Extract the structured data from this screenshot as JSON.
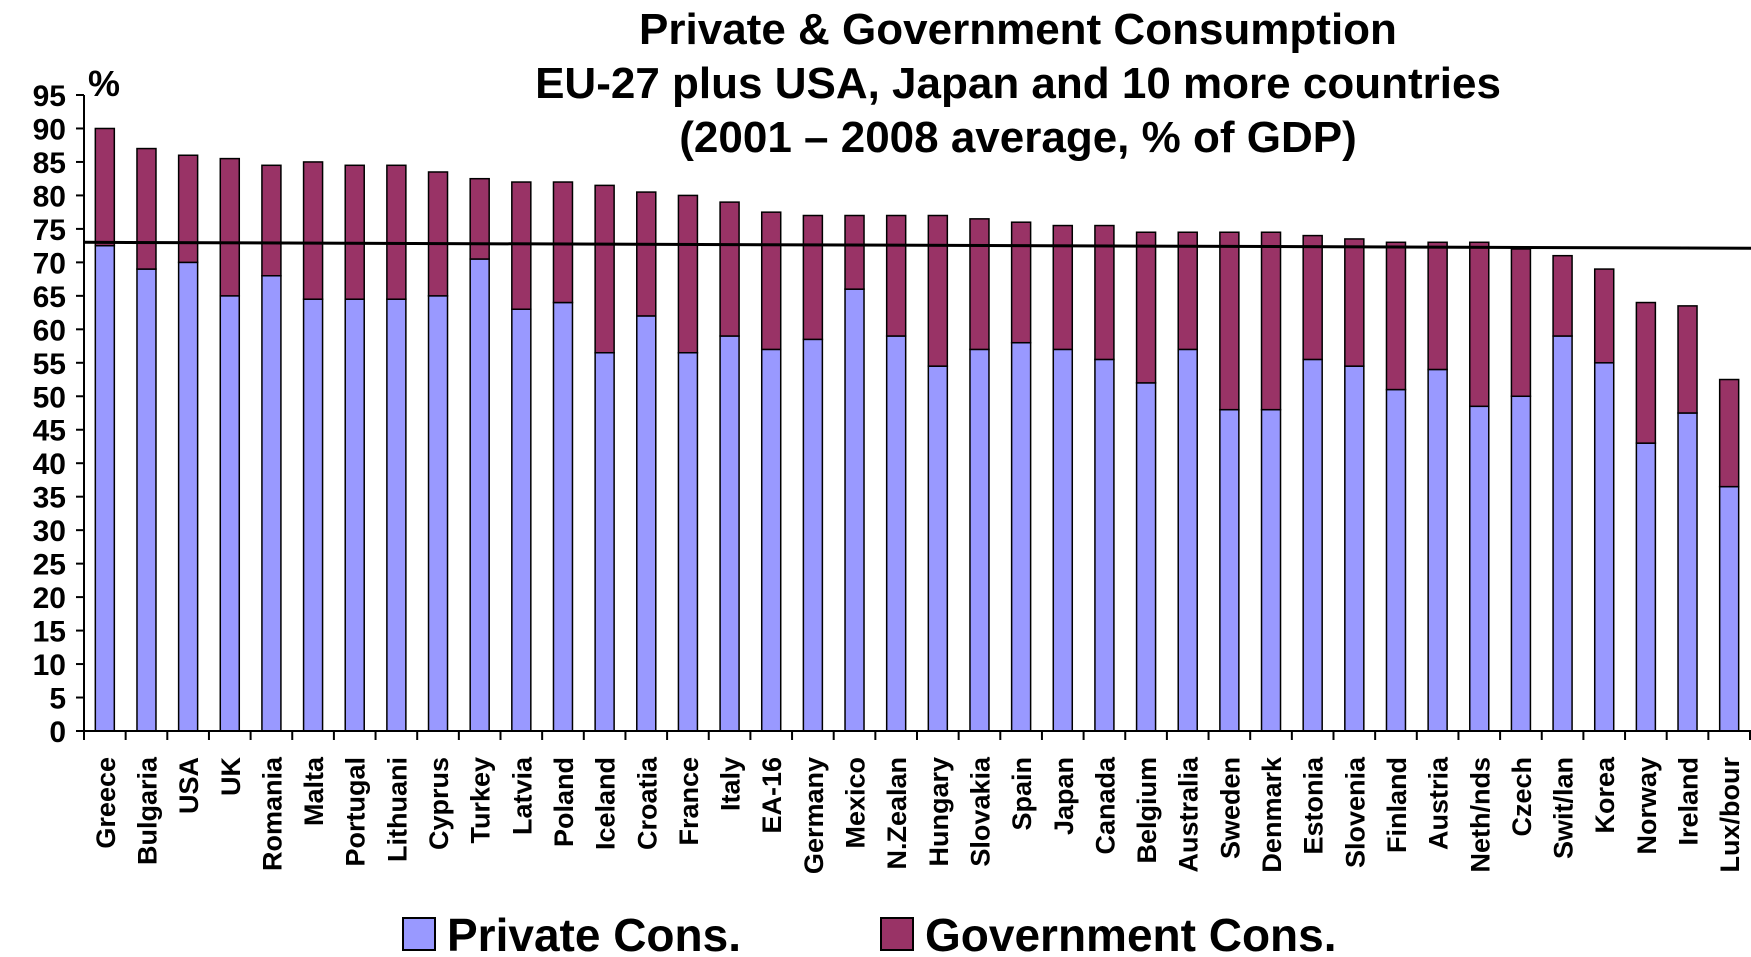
{
  "chart_data": {
    "type": "bar",
    "stacked": true,
    "title": [
      "Private & Government Consumption",
      "EU-27 plus USA, Japan and 10 more countries",
      "(2001 – 2008 average, % of GDP)"
    ],
    "ylabel": "%",
    "xlabel": "",
    "ylim": [
      0,
      95
    ],
    "yticks": [
      0,
      5,
      10,
      15,
      20,
      25,
      30,
      35,
      40,
      45,
      50,
      55,
      60,
      65,
      70,
      75,
      80,
      85,
      90,
      95
    ],
    "grid": false,
    "legend_position": "bottom",
    "reference_line": 73,
    "categories": [
      "Greece",
      "Bulgaria",
      "USA",
      "UK",
      "Romania",
      "Malta",
      "Portugal",
      "Lithuani",
      "Cyprus",
      "Turkey",
      "Latvia",
      "Poland",
      "Iceland",
      "Croatia",
      "France",
      "Italy",
      "EA-16",
      "Germany",
      "Mexico",
      "N.Zealan",
      "Hungary",
      "Slovakia",
      "Spain",
      "Japan",
      "Canada",
      "Belgium",
      "Australia",
      "Sweden",
      "Denmark",
      "Estonia",
      "Slovenia",
      "Finland",
      "Austria",
      "Neth/nds",
      "Czech",
      "Swit/lan",
      "Korea",
      "Norway",
      "Ireland",
      "Lux/bour"
    ],
    "series": [
      {
        "name": "Private Cons.",
        "color": "#9999ff",
        "values": [
          72.5,
          69,
          70,
          65,
          68,
          64.5,
          64.5,
          64.5,
          65,
          70.5,
          63,
          64,
          56.5,
          62,
          56.5,
          59,
          57,
          58.5,
          66,
          59,
          54.5,
          57,
          58,
          57,
          55.5,
          52,
          57,
          48,
          48,
          55.5,
          54.5,
          51,
          54,
          48.5,
          50,
          59,
          55,
          43,
          47.5,
          36.5
        ]
      },
      {
        "name": "Government Cons.",
        "color": "#993366",
        "values": [
          17.5,
          18,
          16,
          20.5,
          16.5,
          20.5,
          20,
          20,
          18.5,
          12,
          19,
          18,
          25,
          18.5,
          23.5,
          20,
          20.5,
          18.5,
          11,
          18,
          22.5,
          19.5,
          18,
          18.5,
          20,
          22.5,
          17.5,
          26.5,
          26.5,
          18.5,
          19,
          22,
          19,
          24.5,
          22,
          12,
          14,
          21,
          16,
          16
        ]
      }
    ]
  }
}
